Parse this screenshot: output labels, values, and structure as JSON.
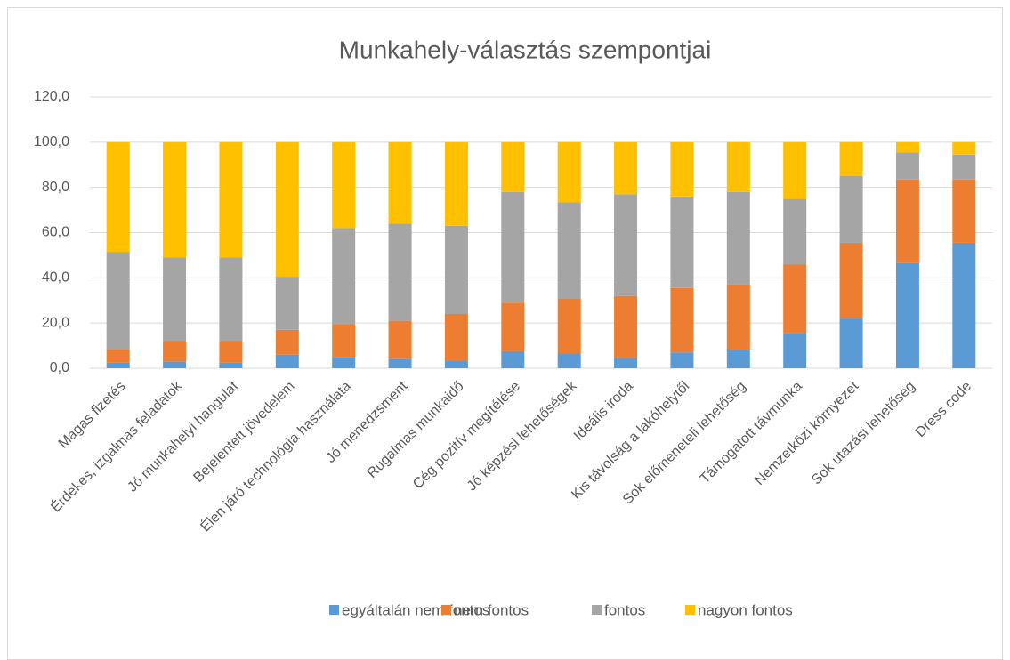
{
  "chart_data": {
    "type": "stacked_bar",
    "title": "Munkahely-választás szempontjai",
    "categories": [
      "Magas fizetés",
      "Érdekes, izgalmas feladatok",
      "Jó munkahelyi hangulat",
      "Bejelentett jövedelem",
      "Élen járó technológia használata",
      "Jó menedzsment",
      "Rugalmas munkaidő",
      "Cég pozitív megítélése",
      "Jó képzési lehetőségek",
      "Ideális iroda",
      "Kis távolság a lakóhelytől",
      "Sok előmeneteli lehetőség",
      "Támogatott távmunka",
      "Nemzetközi környezet",
      "Sok utazási lehetőség",
      "Dress code"
    ],
    "series": [
      {
        "name": "egyáltalán nem fontos",
        "color": "#5b9bd5",
        "values": [
          2.5,
          3,
          2.5,
          6,
          5,
          4,
          3.5,
          7.5,
          6.5,
          4.5,
          7,
          8,
          15.5,
          22,
          46.5,
          55.5
        ]
      },
      {
        "name": "nem fontos",
        "color": "#ed7d31",
        "values": [
          6,
          9,
          9.5,
          11,
          14.5,
          17,
          20.5,
          21.5,
          24.5,
          27.5,
          28.5,
          29,
          30.5,
          33.5,
          37,
          28
        ]
      },
      {
        "name": "fontos",
        "color": "#a5a5a5",
        "values": [
          43,
          37,
          37,
          23.5,
          42.5,
          43,
          39,
          49,
          42.5,
          45,
          40.5,
          41,
          29,
          29.5,
          12,
          11
        ]
      },
      {
        "name": "nagyon fontos",
        "color": "#ffc000",
        "values": [
          48.5,
          51,
          51,
          59.5,
          38,
          36,
          37,
          22,
          26.5,
          23,
          24,
          22,
          25,
          15,
          4.5,
          5.5
        ]
      }
    ],
    "ylim": [
      0,
      120
    ],
    "yticks": [
      {
        "value": 0,
        "label": "0,0"
      },
      {
        "value": 20,
        "label": "20,0"
      },
      {
        "value": 40,
        "label": "40,0"
      },
      {
        "value": 60,
        "label": "60,0"
      },
      {
        "value": 80,
        "label": "80,0"
      },
      {
        "value": 100,
        "label": "100,0"
      },
      {
        "value": 120,
        "label": "120,0"
      }
    ],
    "grid": true,
    "legend": "bottom"
  }
}
